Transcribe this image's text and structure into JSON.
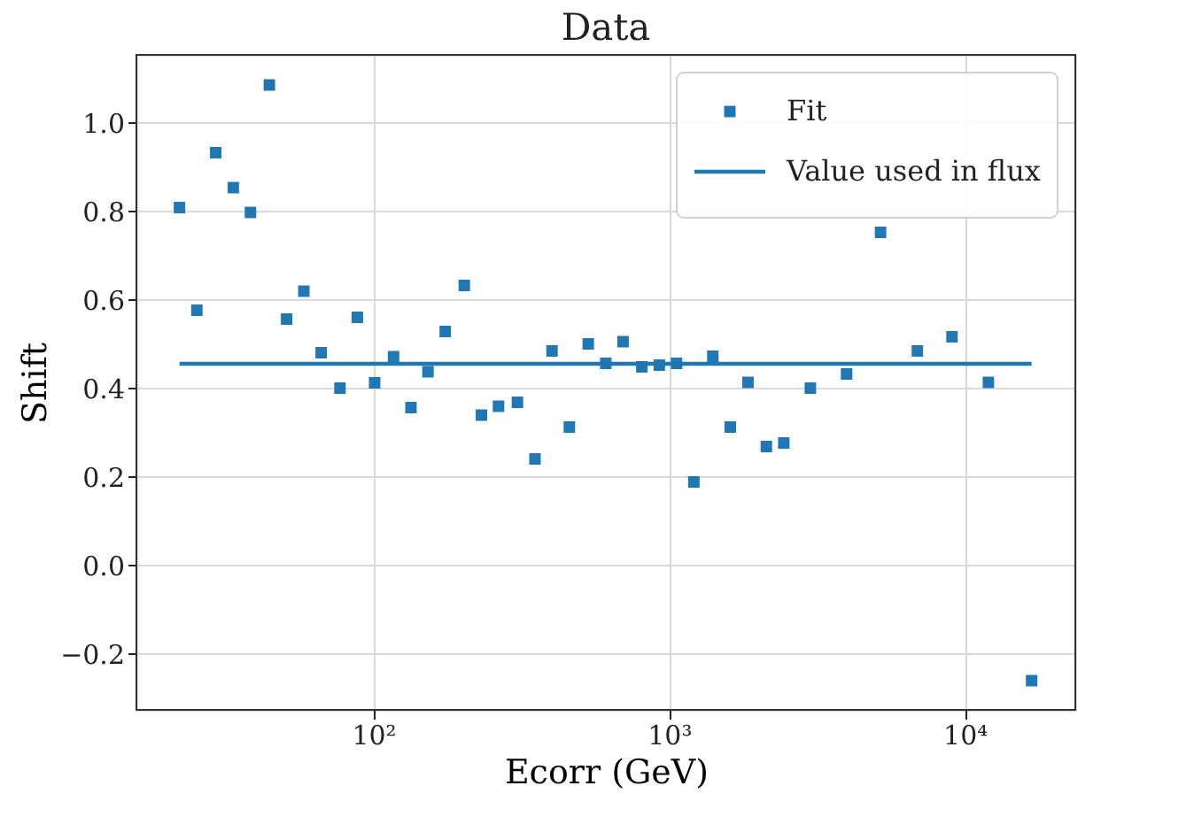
{
  "chart_data": {
    "type": "scatter",
    "title": "Data",
    "xlabel": "Ecorr (GeV)",
    "ylabel": "Shift",
    "log": "x",
    "xlim": [
      15.8,
      23650
    ],
    "ylim": [
      -0.327,
      1.153
    ],
    "xticks": [
      {
        "value": 100,
        "label": "10²"
      },
      {
        "value": 1000,
        "label": "10³"
      },
      {
        "value": 10000,
        "label": "10⁴"
      }
    ],
    "yticks": [
      {
        "value": -0.2,
        "label": "−0.2"
      },
      {
        "value": 0,
        "label": "0.0"
      },
      0.2,
      0.4,
      0.6,
      0.8,
      {
        "value": 1,
        "label": "1.0"
      }
    ],
    "grid": true,
    "legend": "top right",
    "series": [
      {
        "name": "Fit",
        "marker": "square",
        "color": "#1f77b4",
        "x": [
          22.1,
          25.3,
          29.3,
          33.6,
          38.4,
          44.5,
          50.9,
          58.2,
          66.6,
          77.1,
          88.3,
          101,
          117,
          134,
          153,
          175,
          203,
          232,
          265,
          307,
          352,
          402,
          460,
          533,
          611,
          699,
          809,
          927,
          1060,
          1213,
          1406,
          1611,
          1849,
          2133,
          2443,
          3005,
          3985,
          5190,
          6915,
          9052,
          12020,
          16830
        ],
        "values": [
          0.808,
          0.576,
          0.932,
          0.853,
          0.797,
          1.085,
          0.556,
          0.619,
          0.48,
          0.4,
          0.56,
          0.412,
          0.471,
          0.356,
          0.437,
          0.528,
          0.632,
          0.339,
          0.359,
          0.368,
          0.24,
          0.484,
          0.312,
          0.5,
          0.456,
          0.505,
          0.448,
          0.452,
          0.456,
          0.188,
          0.472,
          0.312,
          0.413,
          0.268,
          0.276,
          0.4,
          0.432,
          0.752,
          0.484,
          0.516,
          0.413,
          -0.261
        ]
      },
      {
        "name": "Value used in flux",
        "type": "line",
        "color": "#1f77b4",
        "line_style": "solid",
        "x": [
          22.1,
          16830
        ],
        "values": [
          0.455,
          0.455
        ]
      }
    ]
  }
}
